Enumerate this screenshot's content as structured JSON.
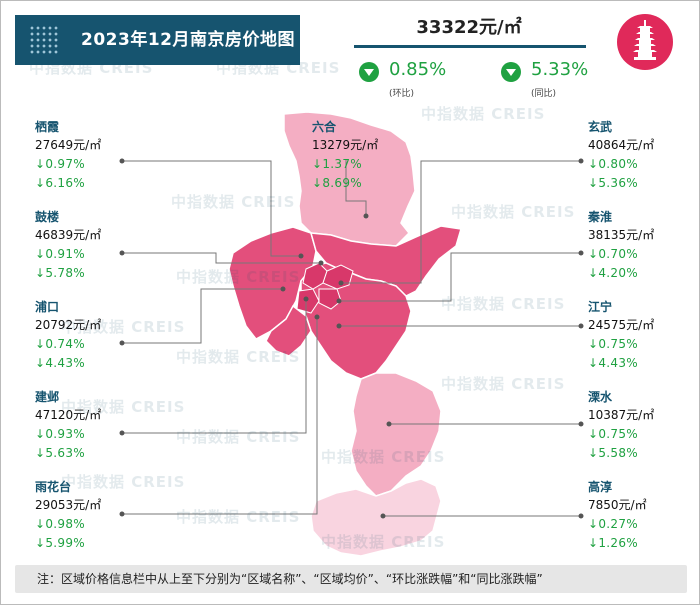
{
  "title": "2023年12月南京房价地图",
  "summary": {
    "avg_price": "33322元/㎡",
    "mom": {
      "value": "0.85%",
      "label": "(环比)",
      "direction": "down"
    },
    "yoy": {
      "value": "5.33%",
      "label": "(同比)",
      "direction": "down"
    }
  },
  "logo_icon": "pagoda-icon",
  "watermark": "中指数据 CREIS",
  "colors": {
    "header_bg": "#16546f",
    "down_green": "#1fa141",
    "map_dark": "#e34f7c",
    "map_light": "#f4aec3",
    "map_pale": "#f9d4e0",
    "accent": "#e0295a"
  },
  "districts": {
    "qixia": {
      "name": "栖霞",
      "price": "27649元/㎡",
      "mom": "↓0.97%",
      "yoy": "↓6.16%"
    },
    "gulou": {
      "name": "鼓楼",
      "price": "46839元/㎡",
      "mom": "↓0.91%",
      "yoy": "↓5.78%"
    },
    "pukou": {
      "name": "浦口",
      "price": "20792元/㎡",
      "mom": "↓0.74%",
      "yoy": "↓4.43%"
    },
    "jianye": {
      "name": "建邺",
      "price": "47120元/㎡",
      "mom": "↓0.93%",
      "yoy": "↓5.63%"
    },
    "yuhuatai": {
      "name": "雨花台",
      "price": "29053元/㎡",
      "mom": "↓0.98%",
      "yoy": "↓5.99%"
    },
    "luhe": {
      "name": "六合",
      "price": "13279元/㎡",
      "mom": "↓1.37%",
      "yoy": "↓8.69%"
    },
    "xuanwu": {
      "name": "玄武",
      "price": "40864元/㎡",
      "mom": "↓0.80%",
      "yoy": "↓5.36%"
    },
    "qinhuai": {
      "name": "秦淮",
      "price": "38135元/㎡",
      "mom": "↓0.70%",
      "yoy": "↓4.20%"
    },
    "jiangning": {
      "name": "江宁",
      "price": "24575元/㎡",
      "mom": "↓0.75%",
      "yoy": "↓4.43%"
    },
    "lishui": {
      "name": "溧水",
      "price": "10387元/㎡",
      "mom": "↓0.75%",
      "yoy": "↓5.58%"
    },
    "gaochun": {
      "name": "高淳",
      "price": "7850元/㎡",
      "mom": "↓0.27%",
      "yoy": "↓1.26%"
    }
  },
  "note": "注：区域价格信息栏中从上至下分别为“区域名称”、“区域均价”、“环比涨跌幅”和“同比涨跌幅”"
}
